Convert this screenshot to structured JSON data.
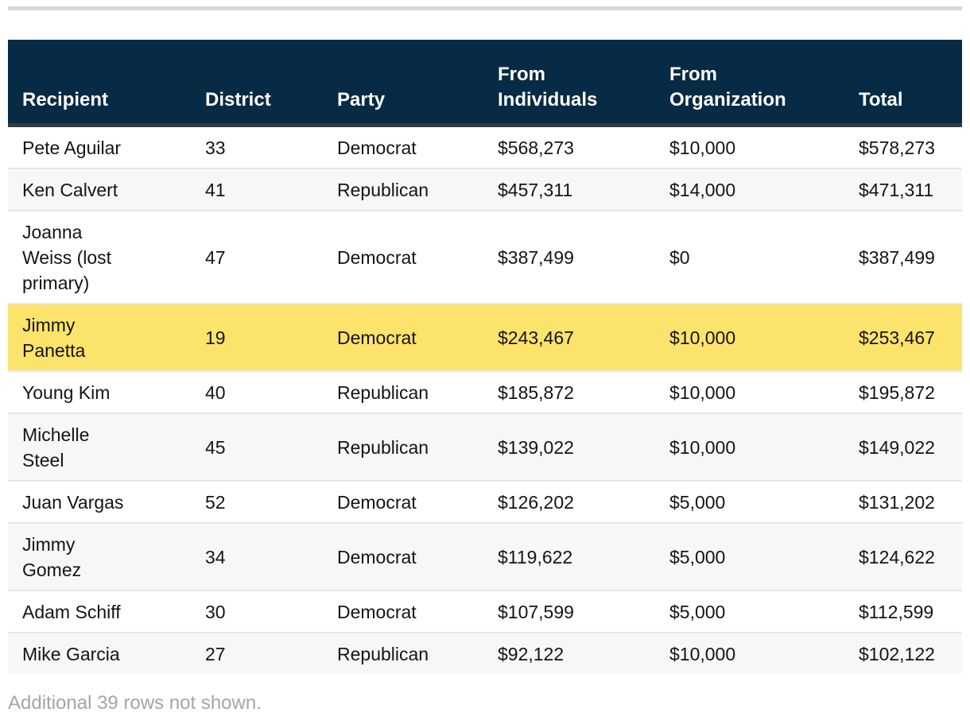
{
  "colors": {
    "top_bar": "#d8d8d8",
    "header_bg": "#072b44",
    "header_text": "#ffffff",
    "header_border": "#373b3e",
    "row_border": "#e7e7e7",
    "stripe_row": "#f7f7f7",
    "highlight_row": "#fce36b",
    "body_text": "#141414",
    "footer_text": "#a5a5a5"
  },
  "table": {
    "columns": [
      {
        "key": "recipient",
        "label": "Recipient",
        "align": "left"
      },
      {
        "key": "district",
        "label": "District",
        "align": "right"
      },
      {
        "key": "party",
        "label": "Party",
        "align": "left"
      },
      {
        "key": "from_individuals",
        "label": "From\nIndividuals",
        "align": "left"
      },
      {
        "key": "from_organization",
        "label": "From\nOrganization",
        "align": "left"
      },
      {
        "key": "total",
        "label": "Total",
        "align": "left"
      }
    ],
    "rows": [
      {
        "recipient": "Pete Aguilar",
        "district": "33",
        "party": "Democrat",
        "from_individuals": "$568,273",
        "from_organization": "$10,000",
        "total": "$578,273",
        "highlighted": false
      },
      {
        "recipient": "Ken Calvert",
        "district": "41",
        "party": "Republican",
        "from_individuals": "$457,311",
        "from_organization": "$14,000",
        "total": "$471,311",
        "highlighted": false
      },
      {
        "recipient": "Joanna\nWeiss (lost\nprimary)",
        "district": "47",
        "party": "Democrat",
        "from_individuals": "$387,499",
        "from_organization": "$0",
        "total": "$387,499",
        "highlighted": false
      },
      {
        "recipient": "Jimmy\nPanetta",
        "district": "19",
        "party": "Democrat",
        "from_individuals": "$243,467",
        "from_organization": "$10,000",
        "total": "$253,467",
        "highlighted": true
      },
      {
        "recipient": "Young Kim",
        "district": "40",
        "party": "Republican",
        "from_individuals": "$185,872",
        "from_organization": "$10,000",
        "total": "$195,872",
        "highlighted": false
      },
      {
        "recipient": "Michelle\nSteel",
        "district": "45",
        "party": "Republican",
        "from_individuals": "$139,022",
        "from_organization": "$10,000",
        "total": "$149,022",
        "highlighted": false
      },
      {
        "recipient": "Juan Vargas",
        "district": "52",
        "party": "Democrat",
        "from_individuals": "$126,202",
        "from_organization": "$5,000",
        "total": "$131,202",
        "highlighted": false
      },
      {
        "recipient": "Jimmy\nGomez",
        "district": "34",
        "party": "Democrat",
        "from_individuals": "$119,622",
        "from_organization": "$5,000",
        "total": "$124,622",
        "highlighted": false
      },
      {
        "recipient": "Adam Schiff",
        "district": "30",
        "party": "Democrat",
        "from_individuals": "$107,599",
        "from_organization": "$5,000",
        "total": "$112,599",
        "highlighted": false
      },
      {
        "recipient": "Mike Garcia",
        "district": "27",
        "party": "Republican",
        "from_individuals": "$92,122",
        "from_organization": "$10,000",
        "total": "$102,122",
        "highlighted": false
      }
    ],
    "note": "Additional 39 rows not shown."
  },
  "chart_data": {
    "type": "table",
    "title": "",
    "columns": [
      "Recipient",
      "District",
      "Party",
      "From Individuals",
      "From Organization",
      "Total"
    ],
    "rows": [
      [
        "Pete Aguilar",
        33,
        "Democrat",
        568273,
        10000,
        578273
      ],
      [
        "Ken Calvert",
        41,
        "Republican",
        457311,
        14000,
        471311
      ],
      [
        "Joanna Weiss (lost primary)",
        47,
        "Democrat",
        387499,
        0,
        387499
      ],
      [
        "Jimmy Panetta",
        19,
        "Democrat",
        243467,
        10000,
        253467
      ],
      [
        "Young Kim",
        40,
        "Republican",
        185872,
        10000,
        195872
      ],
      [
        "Michelle Steel",
        45,
        "Republican",
        139022,
        10000,
        149022
      ],
      [
        "Juan Vargas",
        52,
        "Democrat",
        126202,
        5000,
        131202
      ],
      [
        "Jimmy Gomez",
        34,
        "Democrat",
        119622,
        5000,
        124622
      ],
      [
        "Adam Schiff",
        30,
        "Democrat",
        107599,
        5000,
        112599
      ],
      [
        "Mike Garcia",
        27,
        "Republican",
        92122,
        10000,
        102122
      ]
    ],
    "currency_columns": [
      "From Individuals",
      "From Organization",
      "Total"
    ],
    "highlighted_row": "Jimmy Panetta",
    "note": "Additional 39 rows not shown."
  }
}
